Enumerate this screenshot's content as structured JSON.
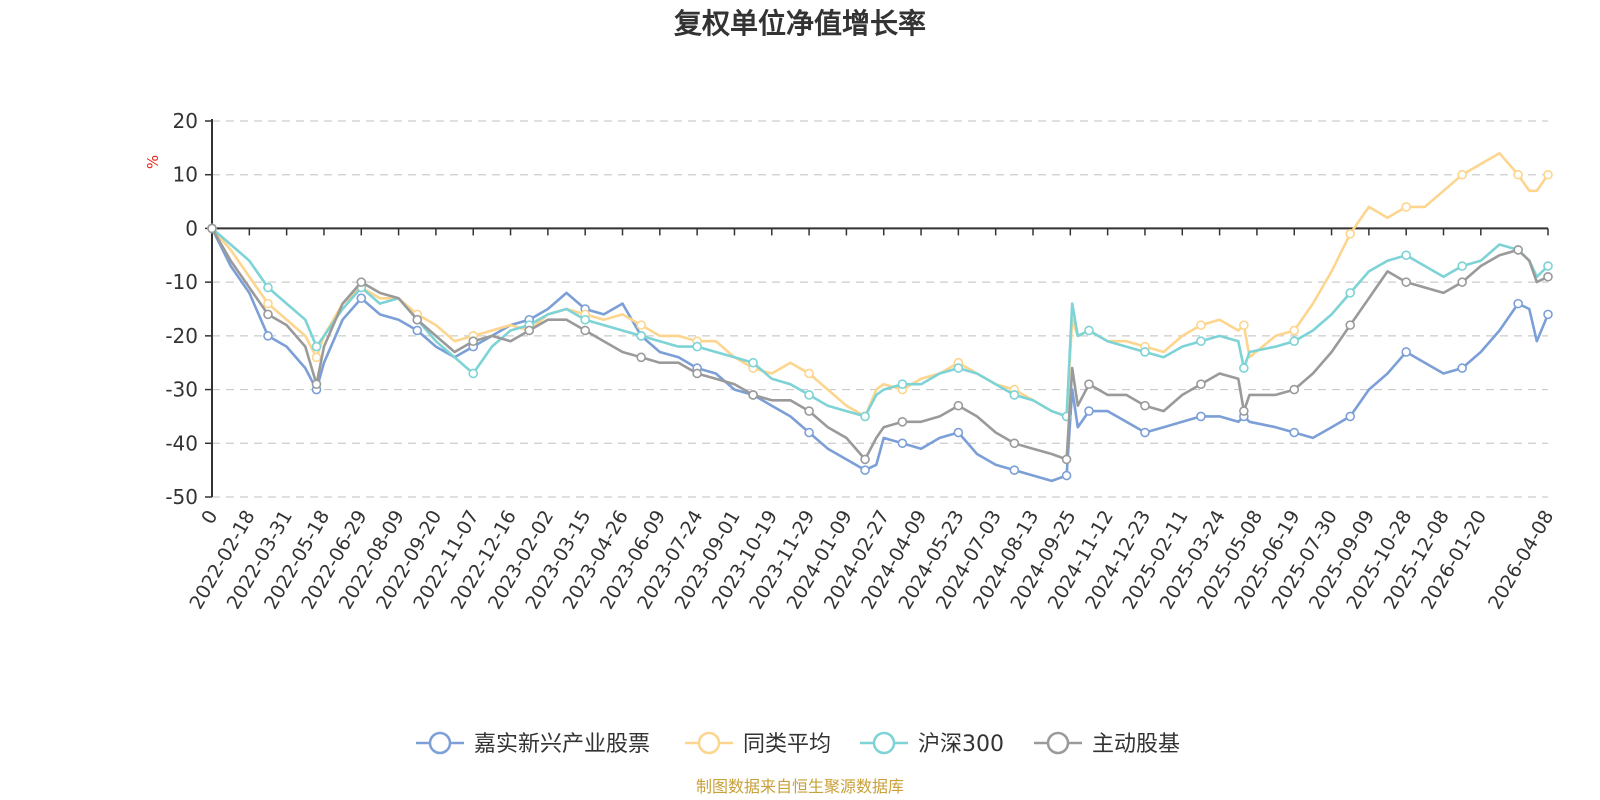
{
  "chart_data": {
    "type": "line",
    "title": "复权单位净值增长率",
    "ylabel": "%",
    "ylim": [
      -50,
      20
    ],
    "yticks": [
      20,
      10,
      0,
      -10,
      -20,
      -30,
      -40,
      -50
    ],
    "grid": true,
    "legend_position": "bottom",
    "x_ticks": [
      "0",
      "2022-02-18",
      "2022-03-31",
      "2022-05-18",
      "2022-06-29",
      "2022-08-09",
      "2022-09-20",
      "2022-11-07",
      "2022-12-16",
      "2023-02-02",
      "2023-03-15",
      "2023-04-26",
      "2023-06-09",
      "2023-07-24",
      "2023-09-01",
      "2023-10-19",
      "2023-11-29",
      "2024-01-09",
      "2024-02-27",
      "2024-04-09",
      "2024-05-23",
      "2024-07-03",
      "2024-08-13",
      "2024-09-25",
      "2024-11-12",
      "2024-12-23",
      "2025-02-11",
      "2025-03-24",
      "2025-05-08",
      "2025-06-19",
      "2025-07-30",
      "2025-09-09",
      "2025-10-28",
      "2025-12-08",
      "2026-01-20",
      "2026-04-08"
    ],
    "x_tick_at": [
      0,
      1,
      2,
      3,
      4,
      5,
      6,
      7,
      8,
      9,
      10,
      11,
      12,
      13,
      14,
      15,
      16,
      17,
      18,
      19,
      20,
      21,
      22,
      23,
      24,
      25,
      26,
      27,
      28,
      29,
      30,
      31,
      32,
      33,
      34,
      35.8
    ],
    "x_max": 35.8,
    "series": [
      {
        "name": "嘉实新兴产业股票",
        "color": "#7b9fd6",
        "x": [
          0,
          0.5,
          1,
          1.5,
          2,
          2.5,
          2.8,
          3,
          3.5,
          4,
          4.5,
          5,
          5.5,
          6,
          6.5,
          7,
          7.5,
          8,
          8.5,
          9,
          9.5,
          10,
          10.5,
          11,
          11.5,
          12,
          12.5,
          13,
          13.5,
          14,
          14.5,
          15,
          15.5,
          16,
          16.5,
          17,
          17.5,
          17.8,
          18,
          18.5,
          19,
          19.5,
          20,
          20.5,
          21,
          21.5,
          22,
          22.5,
          22.9,
          23.05,
          23.2,
          23.5,
          24,
          24.5,
          25,
          25.5,
          26,
          26.5,
          27,
          27.5,
          27.65,
          27.8,
          28.5,
          29,
          29.5,
          30,
          30.5,
          31,
          31.5,
          32,
          32.5,
          33,
          33.5,
          34,
          34.5,
          35,
          35.3,
          35.5,
          35.8
        ],
        "y": [
          0,
          -7,
          -12,
          -20,
          -22,
          -26,
          -30,
          -25,
          -17,
          -13,
          -16,
          -17,
          -19,
          -22,
          -24,
          -22,
          -20,
          -18,
          -17,
          -15,
          -12,
          -15,
          -16,
          -14,
          -20,
          -23,
          -24,
          -26,
          -27,
          -30,
          -31,
          -33,
          -35,
          -38,
          -41,
          -43,
          -45,
          -44,
          -39,
          -40,
          -41,
          -39,
          -38,
          -42,
          -44,
          -45,
          -46,
          -47,
          -46,
          -30,
          -37,
          -34,
          -34,
          -36,
          -38,
          -37,
          -36,
          -35,
          -35,
          -36,
          -35,
          -36,
          -37,
          -38,
          -39,
          -37,
          -35,
          -30,
          -27,
          -23,
          -25,
          -27,
          -26,
          -23,
          -19,
          -14,
          -15,
          -21,
          -16
        ]
      },
      {
        "name": "同类平均",
        "color": "#fdd58e",
        "x": [
          0,
          0.5,
          1,
          1.5,
          2,
          2.5,
          2.8,
          3,
          3.5,
          4,
          4.5,
          5,
          5.5,
          6,
          6.5,
          7,
          7.5,
          8,
          8.5,
          9,
          9.5,
          10,
          10.5,
          11,
          11.5,
          12,
          12.5,
          13,
          13.5,
          14,
          14.5,
          15,
          15.5,
          16,
          16.5,
          17,
          17.5,
          17.8,
          18,
          18.5,
          19,
          19.5,
          20,
          20.5,
          21,
          21.5,
          22,
          22.5,
          22.9,
          23.05,
          23.2,
          23.5,
          24,
          24.5,
          25,
          25.5,
          26,
          26.5,
          27,
          27.5,
          27.65,
          27.8,
          28.5,
          29,
          29.5,
          30,
          30.5,
          31,
          31.5,
          32,
          32.5,
          33,
          33.5,
          34,
          34.5,
          35,
          35.3,
          35.5,
          35.8
        ],
        "y": [
          0,
          -4,
          -9,
          -14,
          -17,
          -20,
          -24,
          -20,
          -14,
          -11,
          -13,
          -13,
          -16,
          -18,
          -21,
          -20,
          -19,
          -18,
          -19,
          -16,
          -15,
          -16,
          -17,
          -16,
          -18,
          -20,
          -20,
          -21,
          -21,
          -24,
          -26,
          -27,
          -25,
          -27,
          -30,
          -33,
          -35,
          -30,
          -29,
          -30,
          -28,
          -27,
          -25,
          -27,
          -29,
          -30,
          -32,
          -34,
          -35,
          -17,
          -20,
          -19,
          -21,
          -21,
          -22,
          -23,
          -20,
          -18,
          -17,
          -19,
          -18,
          -24,
          -20,
          -19,
          -14,
          -8,
          -1,
          4,
          2,
          4,
          4,
          7,
          10,
          12,
          14,
          10,
          7,
          7,
          10
        ]
      },
      {
        "name": "沪深300",
        "color": "#7dd3d5",
        "x": [
          0,
          0.5,
          1,
          1.5,
          2,
          2.5,
          2.8,
          3,
          3.5,
          4,
          4.5,
          5,
          5.5,
          6,
          6.5,
          7,
          7.5,
          8,
          8.5,
          9,
          9.5,
          10,
          10.5,
          11,
          11.5,
          12,
          12.5,
          13,
          13.5,
          14,
          14.5,
          15,
          15.5,
          16,
          16.5,
          17,
          17.5,
          17.8,
          18,
          18.5,
          19,
          19.5,
          20,
          20.5,
          21,
          21.5,
          22,
          22.5,
          22.9,
          23.05,
          23.2,
          23.5,
          24,
          24.5,
          25,
          25.5,
          26,
          26.5,
          27,
          27.5,
          27.65,
          27.8,
          28.5,
          29,
          29.5,
          30,
          30.5,
          31,
          31.5,
          32,
          32.5,
          33,
          33.5,
          34,
          34.5,
          35,
          35.3,
          35.5,
          35.8
        ],
        "y": [
          0,
          -3,
          -6,
          -11,
          -14,
          -17,
          -22,
          -20,
          -15,
          -11,
          -14,
          -13,
          -17,
          -21,
          -24,
          -27,
          -22,
          -19,
          -18,
          -16,
          -15,
          -17,
          -18,
          -19,
          -20,
          -21,
          -22,
          -22,
          -23,
          -24,
          -25,
          -28,
          -29,
          -31,
          -33,
          -34,
          -35,
          -31,
          -30,
          -29,
          -29,
          -27,
          -26,
          -27,
          -29,
          -31,
          -32,
          -34,
          -35,
          -14,
          -20,
          -19,
          -21,
          -22,
          -23,
          -24,
          -22,
          -21,
          -20,
          -21,
          -26,
          -23,
          -22,
          -21,
          -19,
          -16,
          -12,
          -8,
          -6,
          -5,
          -7,
          -9,
          -7,
          -6,
          -3,
          -4,
          -6,
          -9,
          -7
        ]
      },
      {
        "name": "主动股基",
        "color": "#9a9a9a",
        "x": [
          0,
          0.5,
          1,
          1.5,
          2,
          2.5,
          2.8,
          3,
          3.5,
          4,
          4.5,
          5,
          5.5,
          6,
          6.5,
          7,
          7.5,
          8,
          8.5,
          9,
          9.5,
          10,
          10.5,
          11,
          11.5,
          12,
          12.5,
          13,
          13.5,
          14,
          14.5,
          15,
          15.5,
          16,
          16.5,
          17,
          17.5,
          17.8,
          18,
          18.5,
          19,
          19.5,
          20,
          20.5,
          21,
          21.5,
          22,
          22.5,
          22.9,
          23.05,
          23.2,
          23.5,
          24,
          24.5,
          25,
          25.5,
          26,
          26.5,
          27,
          27.5,
          27.65,
          27.8,
          28.5,
          29,
          29.5,
          30,
          30.5,
          31,
          31.5,
          32,
          32.5,
          33,
          33.5,
          34,
          34.5,
          35,
          35.3,
          35.5,
          35.8
        ],
        "y": [
          0,
          -6,
          -11,
          -16,
          -18,
          -22,
          -29,
          -22,
          -14,
          -10,
          -12,
          -13,
          -17,
          -20,
          -23,
          -21,
          -20,
          -21,
          -19,
          -17,
          -17,
          -19,
          -21,
          -23,
          -24,
          -25,
          -25,
          -27,
          -28,
          -29,
          -31,
          -32,
          -32,
          -34,
          -37,
          -39,
          -43,
          -39,
          -37,
          -36,
          -36,
          -35,
          -33,
          -35,
          -38,
          -40,
          -41,
          -42,
          -43,
          -26,
          -33,
          -29,
          -31,
          -31,
          -33,
          -34,
          -31,
          -29,
          -27,
          -28,
          -34,
          -31,
          -31,
          -30,
          -27,
          -23,
          -18,
          -13,
          -8,
          -10,
          -11,
          -12,
          -10,
          -7,
          -5,
          -4,
          -6,
          -10,
          -9
        ]
      }
    ]
  },
  "legend": {
    "items": [
      {
        "label": "嘉实新兴产业股票",
        "color": "#7b9fd6"
      },
      {
        "label": "同类平均",
        "color": "#fdd58e"
      },
      {
        "label": "沪深300",
        "color": "#7dd3d5"
      },
      {
        "label": "主动股基",
        "color": "#9a9a9a"
      }
    ]
  },
  "source": "制图数据来自恒生聚源数据库"
}
